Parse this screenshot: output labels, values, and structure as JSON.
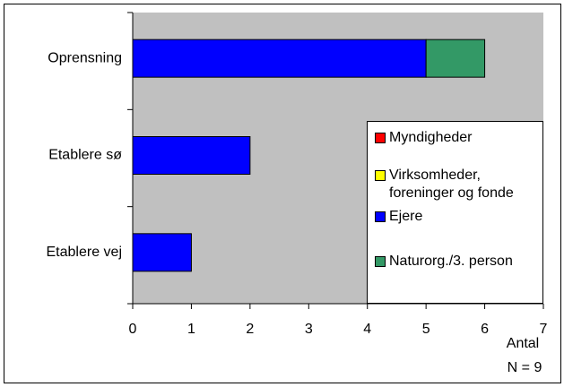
{
  "chart_data": {
    "type": "bar",
    "orientation": "horizontal",
    "stacked": true,
    "categories": [
      "Oprensning",
      "Etablere sø",
      "Etablere vej"
    ],
    "series": [
      {
        "name": "Myndigheder",
        "color": "#ff0000",
        "values": [
          0,
          0,
          0
        ]
      },
      {
        "name": "Virksomheder, foreninger og fonde",
        "color": "#ffff00",
        "values": [
          0,
          0,
          0
        ]
      },
      {
        "name": "Ejere",
        "color": "#0000ff",
        "values": [
          5,
          2,
          1
        ]
      },
      {
        "name": "Naturorg./3. person",
        "color": "#339966",
        "values": [
          1,
          0,
          0
        ]
      }
    ],
    "xlim": [
      0,
      7
    ],
    "xticks": [
      0,
      1,
      2,
      3,
      4,
      5,
      6,
      7
    ],
    "x_label": "Antal",
    "annotation": "N = 9",
    "grid": false,
    "legend": "right"
  }
}
